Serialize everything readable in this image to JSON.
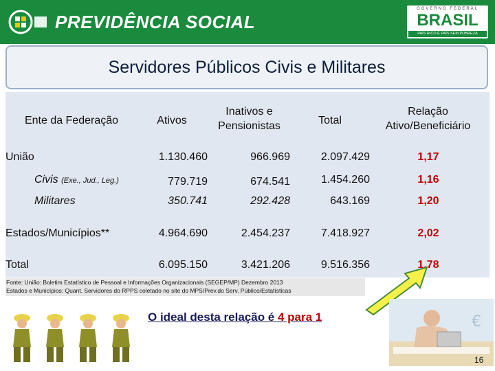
{
  "header": {
    "brand": "PREVIDÊNCIA SOCIAL",
    "gov_top": "GOVERNO FEDERAL",
    "gov_mid": "BRASIL",
    "gov_bot": "PAÍS RICO É PAÍS SEM POBREZA",
    "brand_color": "#1a8a3c"
  },
  "title": "Servidores Públicos Civis e Militares",
  "table": {
    "headers": [
      "Ente da Federação",
      "Ativos",
      "Inativos e Pensionistas",
      "Total",
      "Relação Ativo/Beneficiário"
    ],
    "rows": [
      {
        "label": "União",
        "ativos": "1.130.460",
        "inativos": "966.969",
        "total": "2.097.429",
        "relacao": "1,17"
      },
      {
        "label": "Civis",
        "label_small": "(Exe., Jud., Leg.)",
        "ativos": "779.719",
        "inativos": "674.541",
        "total": "1.454.260",
        "relacao": "1,16"
      },
      {
        "label": "Militares",
        "ativos": "350.741",
        "inativos": "292.428",
        "total": "643.169",
        "relacao": "1,20"
      },
      {
        "label": "Estados/Municípios**",
        "ativos": "4.964.690",
        "inativos": "2.454.237",
        "total": "7.418.927",
        "relacao": "2,02"
      },
      {
        "label": "Total",
        "ativos": "6.095.150",
        "inativos": "3.421.206",
        "total": "9.516.356",
        "relacao": "1,78"
      }
    ]
  },
  "source": {
    "line1": "Fonte: União: Boletim Estatístico de Pessoal e Informações Organizacionais (SEGEP/MP) Dezembro 2013",
    "line2": "Estados e Municípios: Quant. Servidores do RPPS coletado no site do MPS/Prev.do Serv. Público/Estatísticas"
  },
  "ideal": {
    "text": "O ideal desta relação é ",
    "highlight": "4 para 1"
  },
  "page_number": "16",
  "colors": {
    "relation_red": "#c00000",
    "arrow_yellow": "#f5f04a",
    "arrow_outline": "#4a8a3a"
  }
}
